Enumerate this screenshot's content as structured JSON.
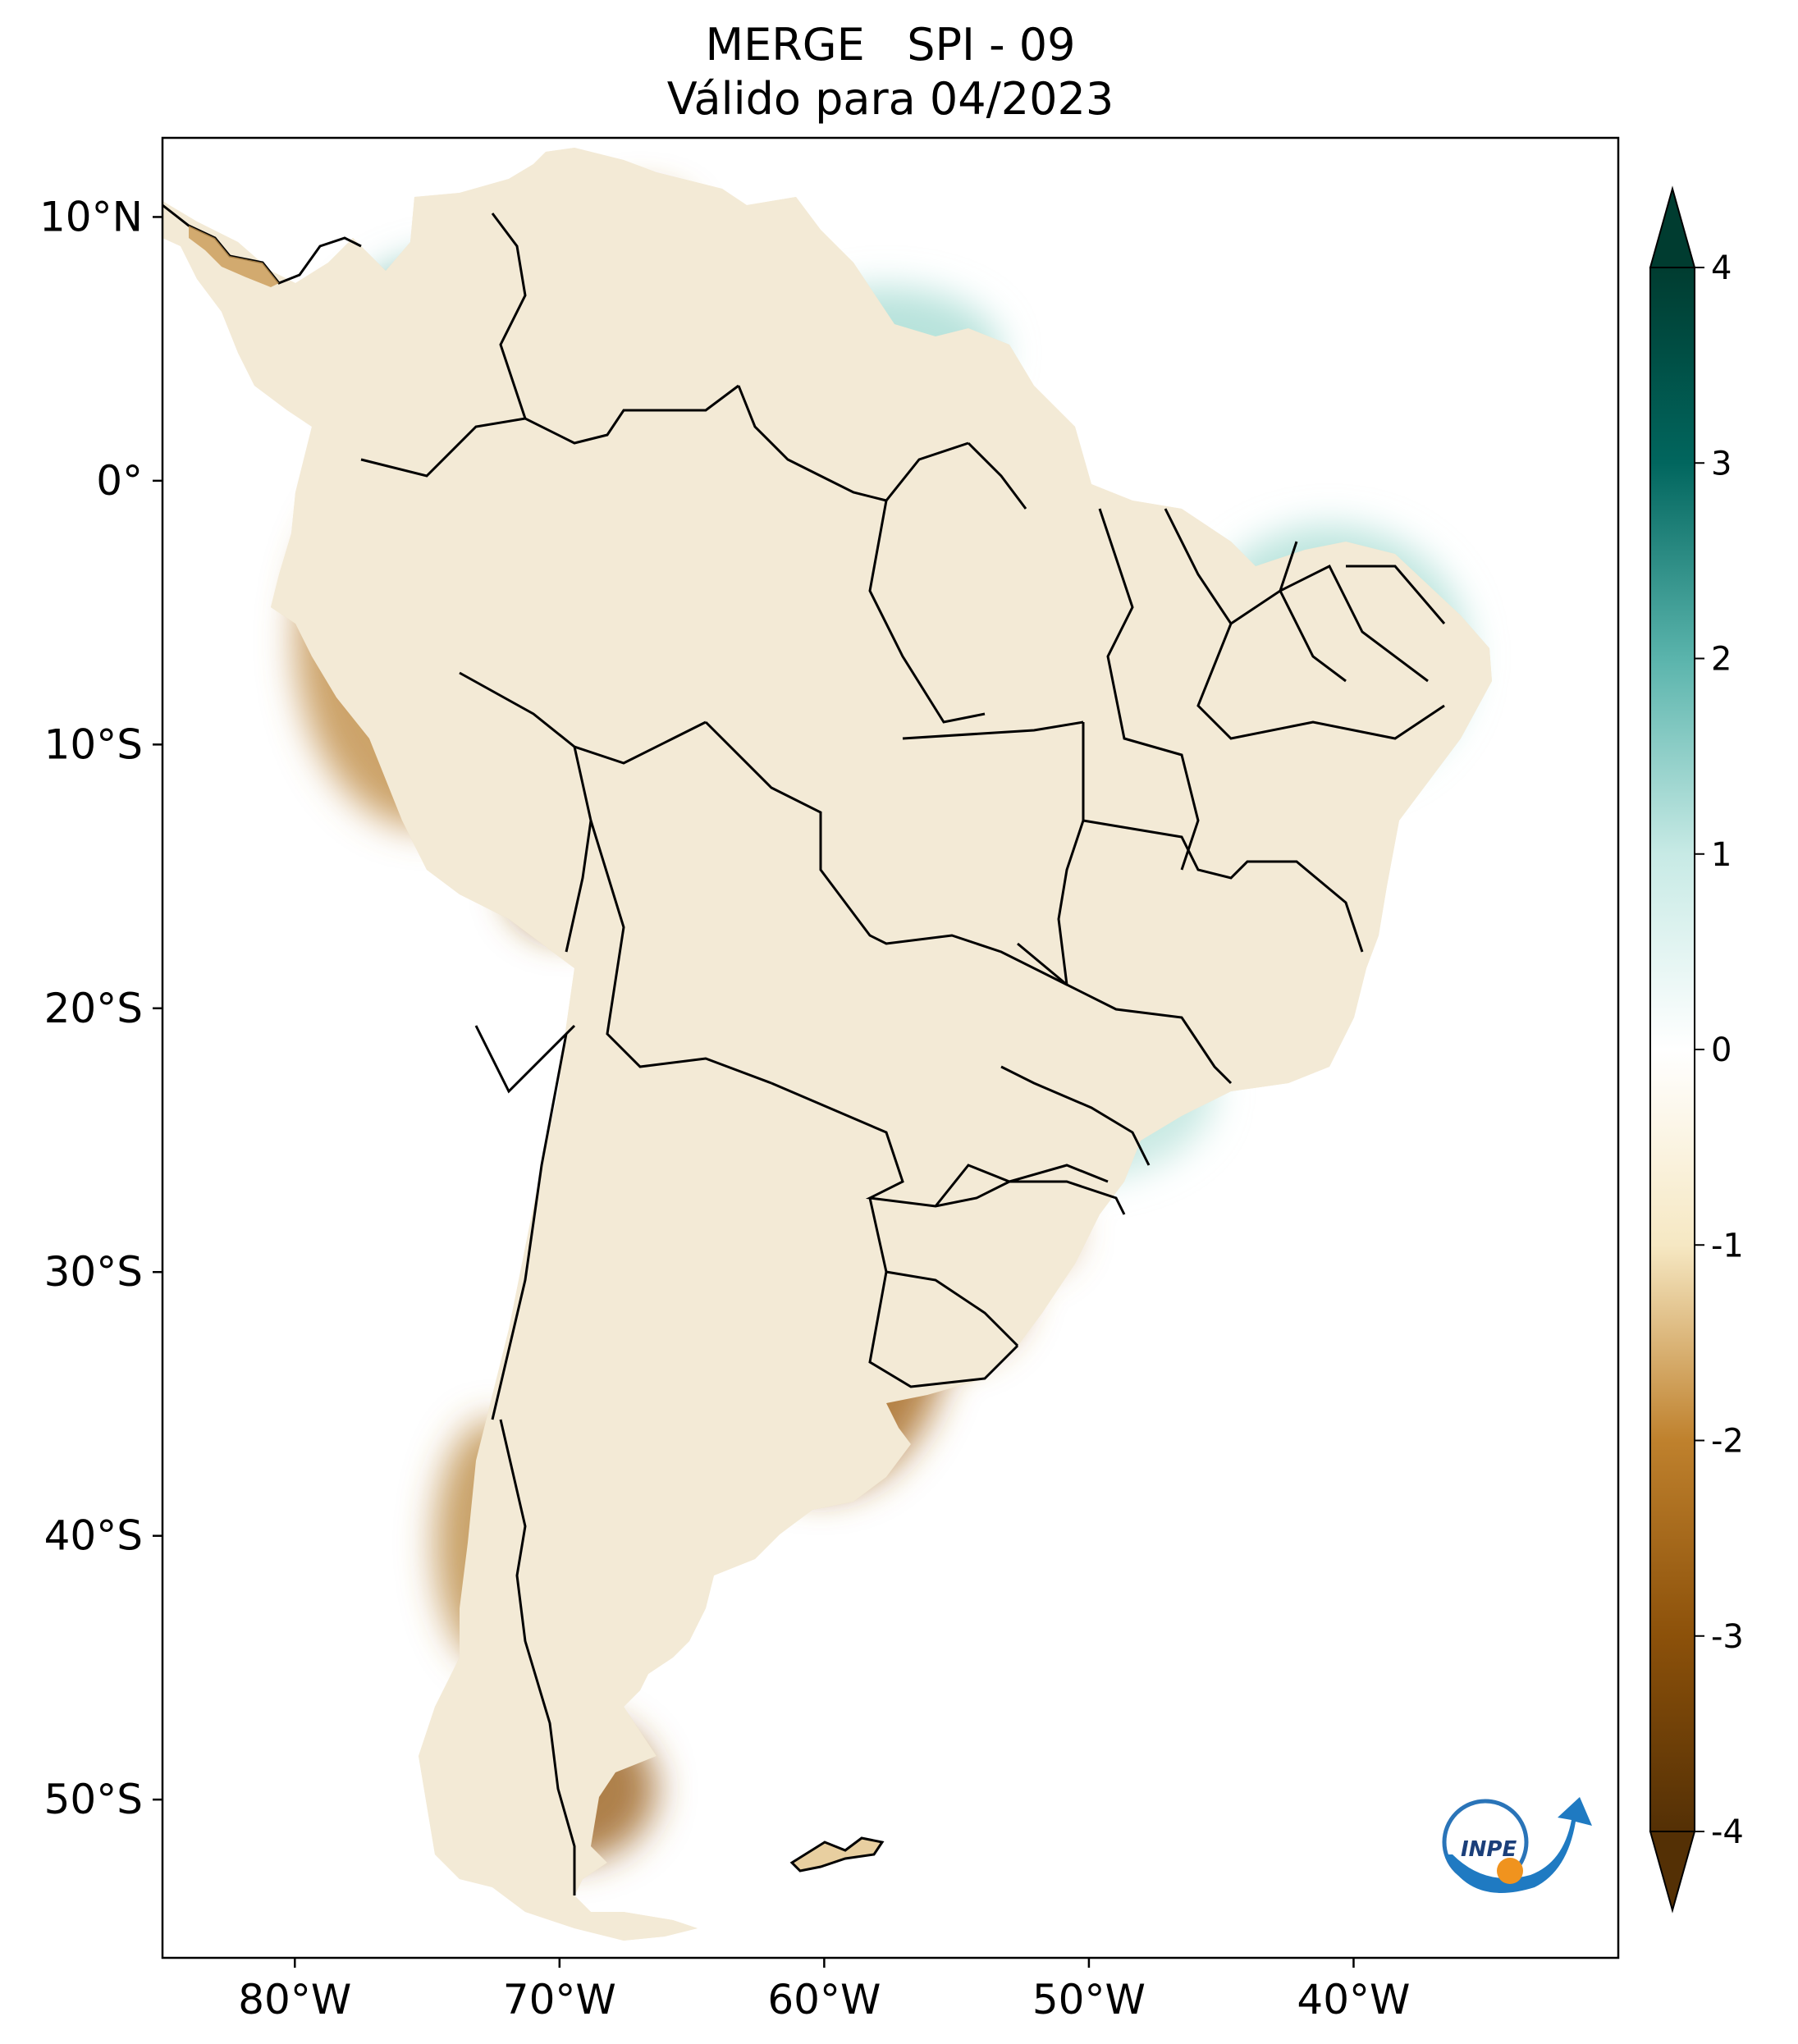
{
  "title": {
    "line1": "MERGE   SPI - 09",
    "line2": "Válido para 04/2023"
  },
  "map": {
    "extent": {
      "lon_min": -85,
      "lon_max": -30,
      "lat_min": -56,
      "lat_max": 13
    },
    "lat_ticks": [
      {
        "value": 10,
        "label": "10°N"
      },
      {
        "value": 0,
        "label": "0°"
      },
      {
        "value": -10,
        "label": "10°S"
      },
      {
        "value": -20,
        "label": "20°S"
      },
      {
        "value": -30,
        "label": "30°S"
      },
      {
        "value": -40,
        "label": "40°S"
      },
      {
        "value": -50,
        "label": "50°S"
      }
    ],
    "lon_ticks": [
      {
        "value": -80,
        "label": "80°W"
      },
      {
        "value": -70,
        "label": "70°W"
      },
      {
        "value": -60,
        "label": "60°W"
      },
      {
        "value": -50,
        "label": "50°W"
      },
      {
        "value": -40,
        "label": "40°W"
      }
    ]
  },
  "colorbar": {
    "min": -4,
    "max": 4,
    "ticks": [
      {
        "value": 4,
        "label": "4"
      },
      {
        "value": 3,
        "label": "3"
      },
      {
        "value": 2,
        "label": "2"
      },
      {
        "value": 1,
        "label": "1"
      },
      {
        "value": 0,
        "label": "0"
      },
      {
        "value": -1,
        "label": "-1"
      },
      {
        "value": -2,
        "label": "-2"
      },
      {
        "value": -3,
        "label": "-3"
      },
      {
        "value": -4,
        "label": "-4"
      }
    ],
    "stops": [
      {
        "value": -4,
        "color": "#543005"
      },
      {
        "value": -3,
        "color": "#8c510a"
      },
      {
        "value": -2,
        "color": "#bf812d"
      },
      {
        "value": -1,
        "color": "#f6e8c3"
      },
      {
        "value": 0,
        "color": "#ffffff"
      },
      {
        "value": 1,
        "color": "#c7eae5"
      },
      {
        "value": 2,
        "color": "#5ab4ac"
      },
      {
        "value": 3,
        "color": "#01665e"
      },
      {
        "value": 4,
        "color": "#003c30"
      }
    ]
  },
  "logo": {
    "text": "INPE"
  }
}
